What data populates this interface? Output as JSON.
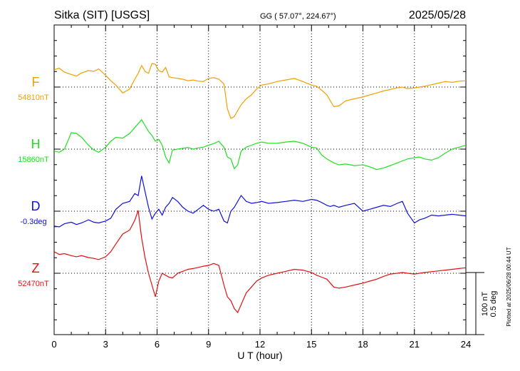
{
  "header": {
    "station": "Sitka (SIT)  [USGS]",
    "coords": "GG ( 57.07°, 224.67°)",
    "date": "2025/05/28"
  },
  "side_note": "Plotted at 2025/06/28 00:44 UT",
  "scale_bar": {
    "line1": "100 nT",
    "line2": "0.5 deg"
  },
  "chart_data": {
    "type": "line",
    "title": "",
    "xlabel": "U T (hour)",
    "ylabel": "",
    "xlim": [
      0,
      24
    ],
    "xticks": [
      "0",
      "3",
      "6",
      "9",
      "12",
      "15",
      "18",
      "21",
      "24"
    ],
    "grid": true,
    "series": [
      {
        "key": "F",
        "name": "F",
        "baseline": "54810nT",
        "color": "#f0a000",
        "baseline_row": 1,
        "x": [
          0,
          0.3,
          0.6,
          1.0,
          1.3,
          1.6,
          2.0,
          2.3,
          2.6,
          3.0,
          3.3,
          3.6,
          4.0,
          4.4,
          4.7,
          4.9,
          5.1,
          5.3,
          5.5,
          5.7,
          5.9,
          6.1,
          6.3,
          6.5,
          6.7,
          6.9,
          7.2,
          7.5,
          7.8,
          8.1,
          8.4,
          8.7,
          9.0,
          9.3,
          9.6,
          9.9,
          10.1,
          10.3,
          10.5,
          10.7,
          10.9,
          11.2,
          11.5,
          11.8,
          12.1,
          12.5,
          13.0,
          13.5,
          14.0,
          14.5,
          15.0,
          15.3,
          15.6,
          15.9,
          16.1,
          16.3,
          16.6,
          17.0,
          17.5,
          18.0,
          18.4,
          18.8,
          19.2,
          19.6,
          20.0,
          20.3,
          20.6,
          21.0,
          21.3,
          21.6,
          22.0,
          22.4,
          22.8,
          23.2,
          23.6,
          24.0
        ],
        "y": [
          44,
          48,
          38,
          32,
          28,
          36,
          42,
          40,
          46,
          30,
          16,
          5,
          -15,
          -5,
          20,
          35,
          55,
          40,
          35,
          60,
          58,
          42,
          38,
          50,
          26,
          24,
          22,
          20,
          16,
          18,
          15,
          14,
          22,
          24,
          20,
          8,
          -55,
          -80,
          -75,
          -60,
          -45,
          -30,
          -20,
          -5,
          5,
          8,
          14,
          18,
          22,
          14,
          5,
          2,
          -8,
          -20,
          -35,
          -50,
          -48,
          -35,
          -30,
          -25,
          -20,
          -15,
          -10,
          -6,
          -2,
          0,
          -4,
          -2,
          0,
          2,
          6,
          10,
          14,
          12,
          15,
          16
        ]
      },
      {
        "key": "H",
        "name": "H",
        "baseline": "15860nT",
        "color": "#20e020",
        "baseline_row": 2,
        "x": [
          0,
          0.3,
          0.6,
          1.0,
          1.3,
          1.6,
          2.0,
          2.3,
          2.6,
          3.0,
          3.3,
          3.6,
          4.0,
          4.4,
          4.7,
          4.9,
          5.1,
          5.3,
          5.5,
          5.7,
          5.9,
          6.1,
          6.3,
          6.5,
          6.7,
          6.9,
          7.2,
          7.5,
          7.8,
          8.1,
          8.4,
          8.7,
          9.0,
          9.3,
          9.6,
          9.9,
          10.1,
          10.3,
          10.5,
          10.7,
          10.9,
          11.2,
          11.5,
          11.8,
          12.1,
          12.5,
          13.0,
          13.5,
          14.0,
          14.5,
          15.0,
          15.3,
          15.6,
          15.9,
          16.1,
          16.3,
          16.6,
          17.0,
          17.5,
          18.0,
          18.4,
          18.8,
          19.2,
          19.6,
          20.0,
          20.3,
          20.6,
          21.0,
          21.3,
          21.6,
          22.0,
          22.4,
          22.8,
          23.2,
          23.6,
          24.0
        ],
        "y": [
          -5,
          -8,
          0,
          42,
          40,
          30,
          10,
          -2,
          -8,
          5,
          20,
          30,
          28,
          40,
          55,
          65,
          75,
          60,
          45,
          35,
          20,
          25,
          10,
          -20,
          -35,
          -2,
          0,
          2,
          4,
          0,
          3,
          5,
          10,
          14,
          20,
          5,
          -20,
          -25,
          -50,
          -40,
          -5,
          5,
          10,
          15,
          18,
          15,
          15,
          18,
          20,
          15,
          5,
          3,
          -15,
          -25,
          -30,
          -35,
          -40,
          -38,
          -42,
          -40,
          -45,
          -52,
          -48,
          -42,
          -35,
          -30,
          -25,
          -22,
          -20,
          -25,
          -28,
          -22,
          -10,
          0,
          5,
          10
        ]
      },
      {
        "key": "D",
        "name": "D",
        "baseline": "-0.3deg",
        "color": "#1010e0",
        "baseline_row": 3,
        "x": [
          0,
          0.3,
          0.6,
          1.0,
          1.3,
          1.6,
          2.0,
          2.3,
          2.6,
          3.0,
          3.3,
          3.6,
          4.0,
          4.4,
          4.7,
          4.9,
          5.1,
          5.3,
          5.5,
          5.7,
          5.9,
          6.1,
          6.3,
          6.5,
          6.7,
          6.9,
          7.2,
          7.5,
          7.8,
          8.1,
          8.4,
          8.7,
          9.0,
          9.3,
          9.6,
          9.9,
          10.1,
          10.3,
          10.5,
          10.7,
          10.9,
          11.2,
          11.5,
          11.8,
          12.1,
          12.5,
          13.0,
          13.5,
          14.0,
          14.5,
          15.0,
          15.3,
          15.6,
          15.9,
          16.1,
          16.3,
          16.6,
          17.0,
          17.5,
          18.0,
          18.4,
          18.8,
          19.2,
          19.6,
          20.0,
          20.3,
          20.6,
          21.0,
          21.3,
          21.6,
          22.0,
          22.4,
          22.8,
          23.2,
          23.6,
          24.0
        ],
        "y": [
          -38,
          -40,
          -32,
          -28,
          -34,
          -30,
          -22,
          -28,
          -30,
          -25,
          -18,
          5,
          20,
          25,
          45,
          40,
          90,
          50,
          10,
          -20,
          -5,
          5,
          -10,
          10,
          20,
          35,
          25,
          10,
          0,
          -5,
          5,
          15,
          5,
          0,
          5,
          -25,
          -30,
          0,
          10,
          25,
          40,
          25,
          20,
          22,
          25,
          20,
          22,
          25,
          28,
          25,
          30,
          28,
          22,
          15,
          12,
          15,
          10,
          15,
          20,
          0,
          5,
          10,
          15,
          12,
          20,
          25,
          -5,
          -30,
          -22,
          -18,
          -10,
          -12,
          -10,
          -8,
          -10,
          -12
        ]
      },
      {
        "key": "Z",
        "name": "Z",
        "baseline": "52470nT",
        "color": "#e01010",
        "baseline_row": 4,
        "x": [
          0,
          0.3,
          0.6,
          1.0,
          1.3,
          1.6,
          2.0,
          2.3,
          2.6,
          3.0,
          3.3,
          3.6,
          4.0,
          4.4,
          4.7,
          4.9,
          5.1,
          5.3,
          5.5,
          5.7,
          5.9,
          6.1,
          6.3,
          6.5,
          6.7,
          6.9,
          7.2,
          7.5,
          7.8,
          8.1,
          8.4,
          8.7,
          9.0,
          9.3,
          9.6,
          9.9,
          10.1,
          10.3,
          10.5,
          10.7,
          10.9,
          11.2,
          11.5,
          11.8,
          12.1,
          12.5,
          13.0,
          13.5,
          14.0,
          14.5,
          15.0,
          15.3,
          15.6,
          15.9,
          16.1,
          16.3,
          16.6,
          17.0,
          17.5,
          18.0,
          18.4,
          18.8,
          19.2,
          19.6,
          20.0,
          20.3,
          20.6,
          21.0,
          21.3,
          21.6,
          22.0,
          22.4,
          22.8,
          23.2,
          23.6,
          24.0
        ],
        "y": [
          55,
          48,
          50,
          45,
          42,
          45,
          40,
          38,
          35,
          42,
          55,
          75,
          100,
          110,
          135,
          160,
          90,
          40,
          0,
          -30,
          -60,
          -20,
          0,
          -5,
          -10,
          -12,
          0,
          5,
          10,
          12,
          15,
          18,
          20,
          25,
          20,
          -30,
          -60,
          -70,
          -90,
          -100,
          -80,
          -50,
          -35,
          -20,
          -12,
          -5,
          0,
          5,
          10,
          8,
          2,
          -5,
          -10,
          -15,
          -25,
          -35,
          -38,
          -35,
          -30,
          -25,
          -20,
          -15,
          -8,
          -2,
          0,
          2,
          0,
          -2,
          0,
          2,
          4,
          6,
          8,
          10,
          12,
          14
        ]
      }
    ]
  }
}
